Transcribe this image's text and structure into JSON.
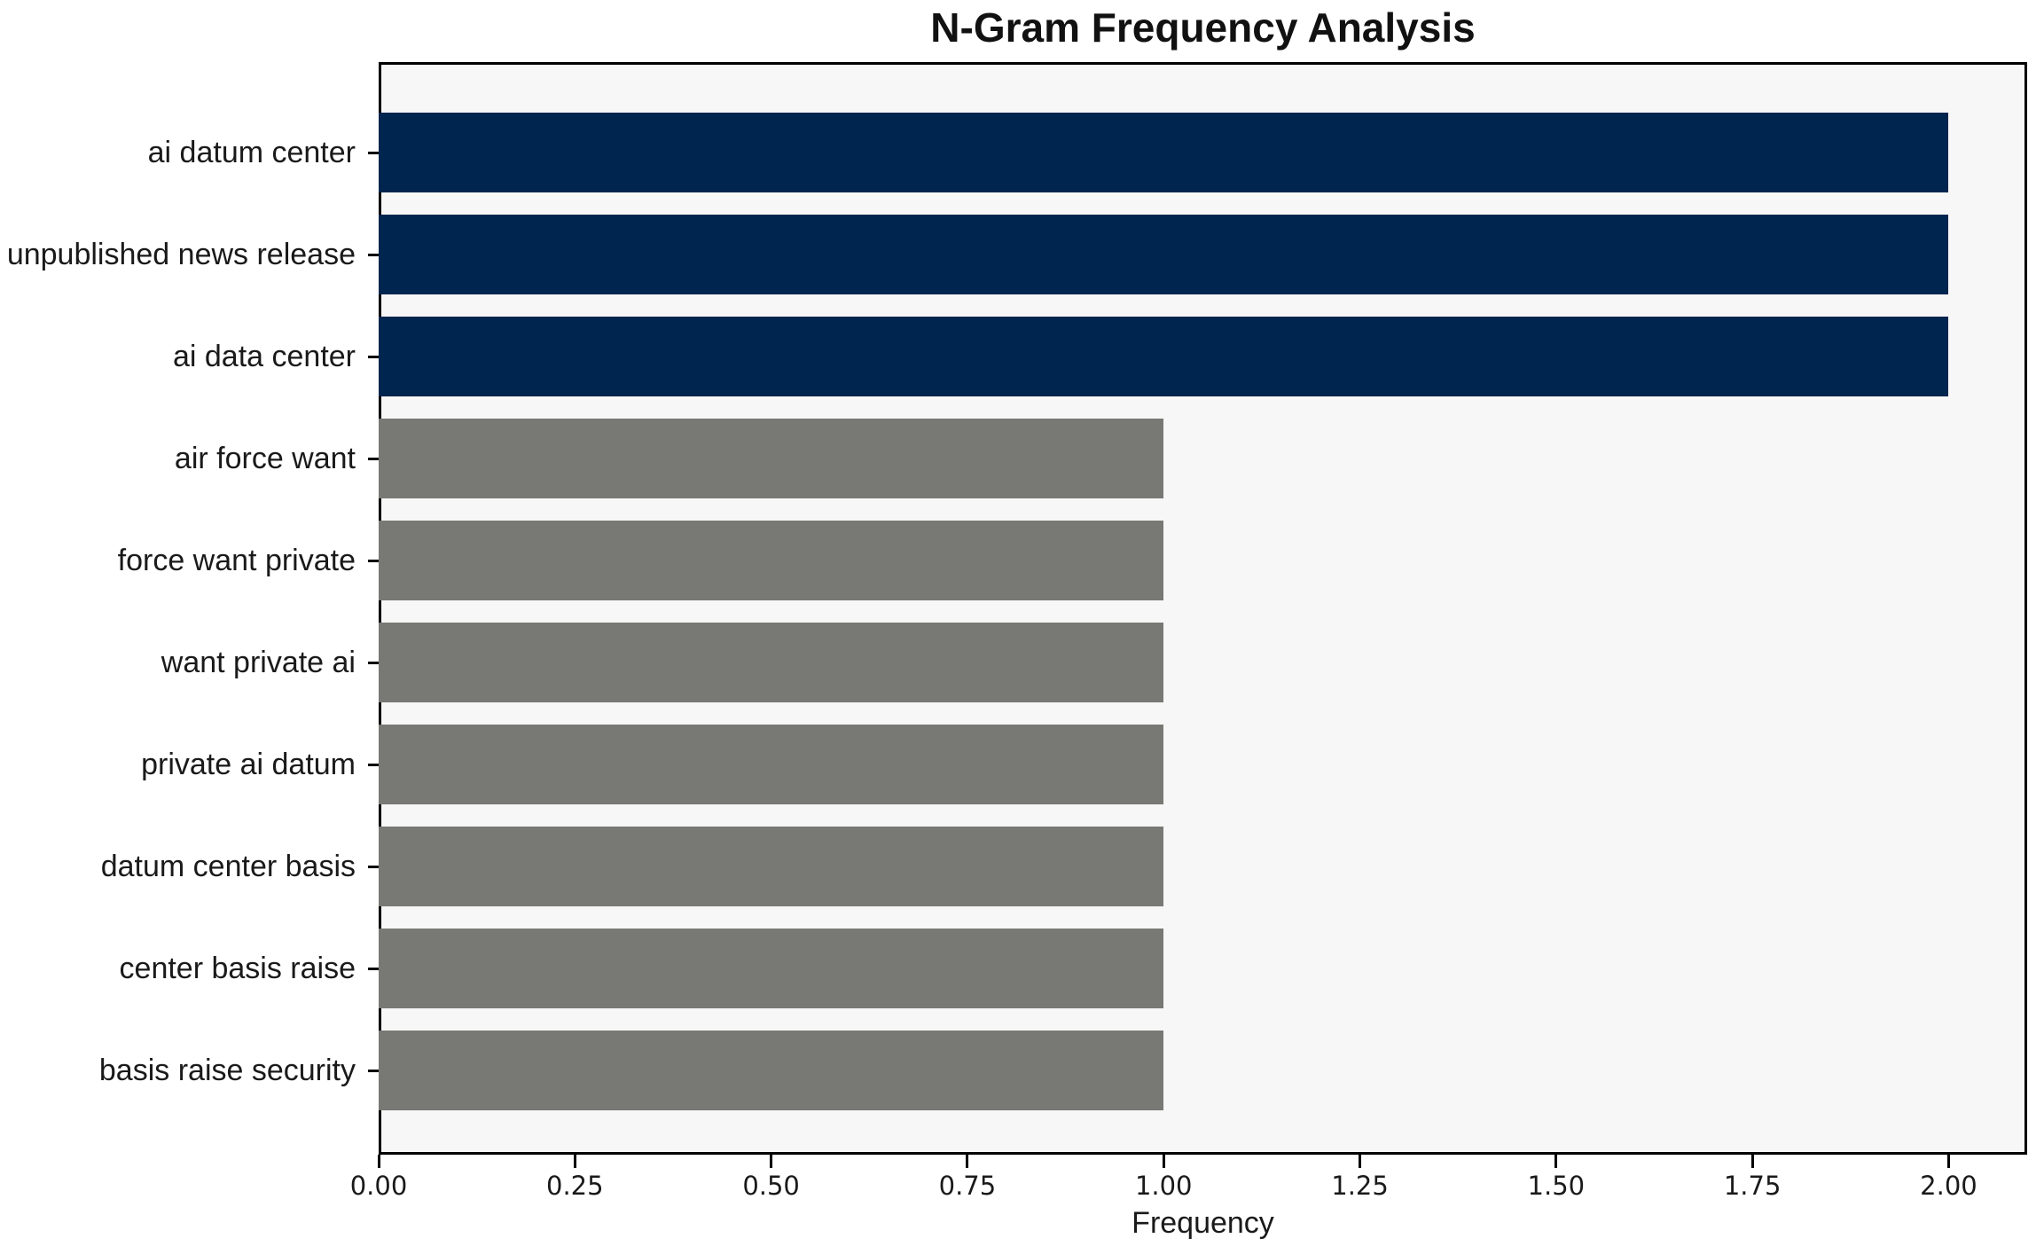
{
  "title": "N-Gram Frequency Analysis",
  "chart_data": {
    "type": "bar",
    "orientation": "horizontal",
    "title": "N-Gram Frequency Analysis",
    "xlabel": "Frequency",
    "ylabel": "",
    "categories": [
      "ai datum center",
      "unpublished news release",
      "ai data center",
      "air force want",
      "force want private",
      "want private ai",
      "private ai datum",
      "datum center basis",
      "center basis raise",
      "basis raise security"
    ],
    "values": [
      2,
      2,
      2,
      1,
      1,
      1,
      1,
      1,
      1,
      1
    ],
    "bar_colors": [
      "#00254e",
      "#00254e",
      "#00254e",
      "#787875",
      "#787875",
      "#787875",
      "#787875",
      "#787875",
      "#787875",
      "#787875"
    ],
    "xlim": [
      0,
      2.1
    ],
    "x_ticks": [
      {
        "value": 0.0,
        "label": "0.00"
      },
      {
        "value": 0.25,
        "label": "0.25"
      },
      {
        "value": 0.5,
        "label": "0.50"
      },
      {
        "value": 0.75,
        "label": "0.75"
      },
      {
        "value": 1.0,
        "label": "1.00"
      },
      {
        "value": 1.25,
        "label": "1.25"
      },
      {
        "value": 1.5,
        "label": "1.50"
      },
      {
        "value": 1.75,
        "label": "1.75"
      },
      {
        "value": 2.0,
        "label": "2.00"
      }
    ],
    "grid": false,
    "legend": "none",
    "plot_background": "#f7f7f7",
    "figure_background": "#ffffff",
    "highlight_color": "#00254e",
    "base_color": "#787875"
  }
}
